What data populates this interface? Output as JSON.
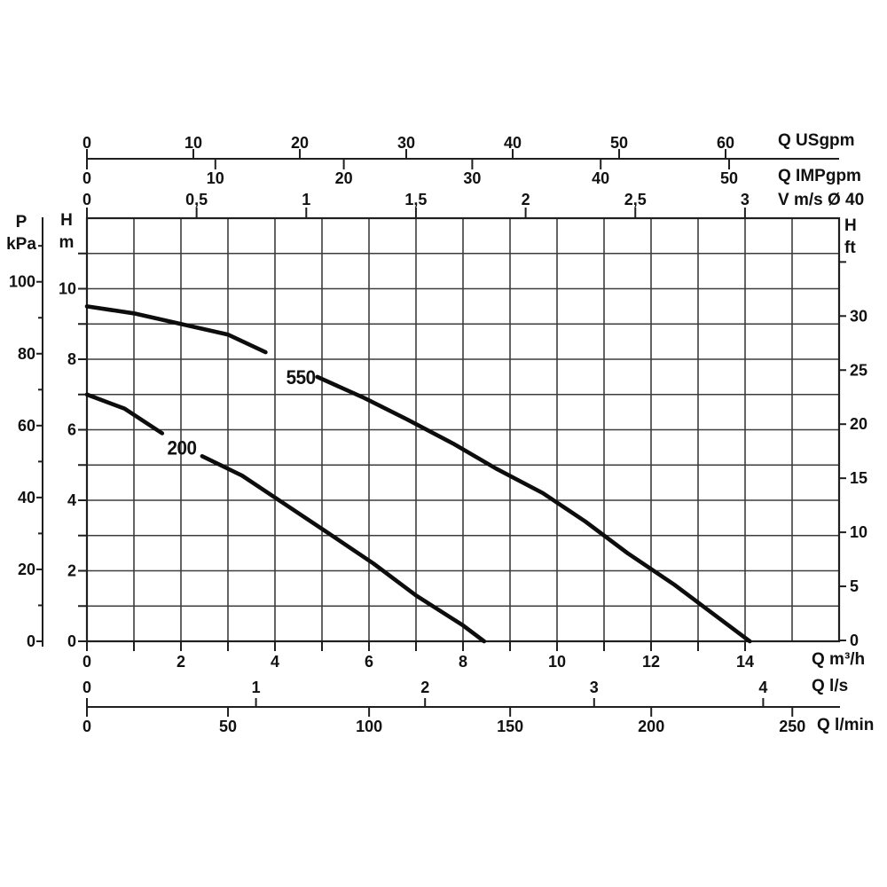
{
  "figure": {
    "bg_color": "#ffffff",
    "curve_color": "#0d0d0d",
    "grid_color": "#3d3d3d",
    "axis_color": "#1f1f1f",
    "text_color": "#111111"
  },
  "axes": {
    "top": [
      {
        "id": "usgpm",
        "title": "Q USgpm",
        "ticks": [
          {
            "v": 0,
            "l": "0"
          },
          {
            "v": 10,
            "l": "10"
          },
          {
            "v": 20,
            "l": "20"
          },
          {
            "v": 30,
            "l": "30"
          },
          {
            "v": 40,
            "l": "40"
          },
          {
            "v": 50,
            "l": "50"
          },
          {
            "v": 60,
            "l": "60"
          }
        ]
      },
      {
        "id": "impgpm",
        "title": "Q IMPgpm",
        "ticks": [
          {
            "v": 0,
            "l": "0"
          },
          {
            "v": 10,
            "l": "10"
          },
          {
            "v": 20,
            "l": "20"
          },
          {
            "v": 30,
            "l": "30"
          },
          {
            "v": 40,
            "l": "40"
          },
          {
            "v": 50,
            "l": "50"
          }
        ]
      },
      {
        "id": "vms",
        "title": "V m/s Ø 40",
        "ticks": [
          {
            "v": 0,
            "l": "0"
          },
          {
            "v": 0.5,
            "l": "0,5"
          },
          {
            "v": 1,
            "l": "1"
          },
          {
            "v": 1.5,
            "l": "1,5"
          },
          {
            "v": 2,
            "l": "2"
          },
          {
            "v": 2.5,
            "l": "2,5"
          },
          {
            "v": 3,
            "l": "3"
          }
        ]
      }
    ],
    "bottom": [
      {
        "id": "qm3h",
        "title": "Q m³/h",
        "ticks": [
          {
            "v": 0,
            "l": "0"
          },
          {
            "v": 1,
            "l": null
          },
          {
            "v": 2,
            "l": "2"
          },
          {
            "v": 3,
            "l": null
          },
          {
            "v": 4,
            "l": "4"
          },
          {
            "v": 5,
            "l": null
          },
          {
            "v": 6,
            "l": "6"
          },
          {
            "v": 7,
            "l": null
          },
          {
            "v": 8,
            "l": "8"
          },
          {
            "v": 9,
            "l": null
          },
          {
            "v": 10,
            "l": "10"
          },
          {
            "v": 11,
            "l": null
          },
          {
            "v": 12,
            "l": "12"
          },
          {
            "v": 13,
            "l": null
          },
          {
            "v": 14,
            "l": "14"
          }
        ]
      },
      {
        "id": "qls",
        "title": "Q l/s",
        "ticks": [
          {
            "v": 0,
            "l": "0"
          },
          {
            "v": 1,
            "l": "1"
          },
          {
            "v": 2,
            "l": "2"
          },
          {
            "v": 3,
            "l": "3"
          },
          {
            "v": 4,
            "l": "4"
          }
        ]
      },
      {
        "id": "qlmin",
        "title": "Q l/min",
        "ticks": [
          {
            "v": 0,
            "l": "0"
          },
          {
            "v": 50,
            "l": "50"
          },
          {
            "v": 100,
            "l": "100"
          },
          {
            "v": 150,
            "l": "150"
          },
          {
            "v": 200,
            "l": "200"
          },
          {
            "v": 250,
            "l": "250"
          }
        ]
      }
    ],
    "left": [
      {
        "id": "pkpa",
        "title_lines": [
          "P",
          "kPa"
        ],
        "ticks": [
          {
            "v": 0,
            "l": "0"
          },
          {
            "v": 10,
            "l": null
          },
          {
            "v": 20,
            "l": "20"
          },
          {
            "v": 30,
            "l": null
          },
          {
            "v": 40,
            "l": "40"
          },
          {
            "v": 50,
            "l": null
          },
          {
            "v": 60,
            "l": "60"
          },
          {
            "v": 70,
            "l": null
          },
          {
            "v": 80,
            "l": "80"
          },
          {
            "v": 90,
            "l": null
          },
          {
            "v": 100,
            "l": "100"
          },
          {
            "v": 110,
            "l": null
          }
        ]
      },
      {
        "id": "hm",
        "title_lines": [
          "H",
          "m"
        ],
        "ticks": [
          {
            "v": 0,
            "l": "0"
          },
          {
            "v": 1,
            "l": null
          },
          {
            "v": 2,
            "l": "2"
          },
          {
            "v": 3,
            "l": null
          },
          {
            "v": 4,
            "l": "4"
          },
          {
            "v": 5,
            "l": null
          },
          {
            "v": 6,
            "l": "6"
          },
          {
            "v": 7,
            "l": null
          },
          {
            "v": 8,
            "l": "8"
          },
          {
            "v": 9,
            "l": null
          },
          {
            "v": 10,
            "l": "10"
          },
          {
            "v": 11,
            "l": null
          }
        ]
      }
    ],
    "right": [
      {
        "id": "hft",
        "title_lines": [
          "H",
          "ft"
        ],
        "ticks": [
          {
            "v": 0,
            "l": "0"
          },
          {
            "v": 5,
            "l": "5"
          },
          {
            "v": 10,
            "l": "10"
          },
          {
            "v": 15,
            "l": "15"
          },
          {
            "v": 20,
            "l": "20"
          },
          {
            "v": 25,
            "l": "25"
          },
          {
            "v": 30,
            "l": "30"
          },
          {
            "v": 35,
            "l": null
          }
        ]
      }
    ]
  },
  "chart_data": {
    "type": "line",
    "x_axis": {
      "label": "Q m³/h",
      "range": [
        0,
        15.9
      ]
    },
    "y_axis": {
      "label": "H m",
      "range": [
        0,
        12
      ]
    },
    "grid": true,
    "series": [
      {
        "name": "550",
        "label_at": {
          "q": 4.55,
          "h": 7.5
        },
        "label_gap_q": [
          3.8,
          4.9
        ],
        "points": [
          [
            0,
            9.5
          ],
          [
            1,
            9.3
          ],
          [
            2,
            9.0
          ],
          [
            3,
            8.7
          ],
          [
            3.8,
            8.2
          ],
          [
            4.9,
            7.5
          ],
          [
            5.9,
            6.9
          ],
          [
            6.8,
            6.3
          ],
          [
            7.8,
            5.6
          ],
          [
            8.7,
            4.9
          ],
          [
            9.7,
            4.2
          ],
          [
            10.6,
            3.4
          ],
          [
            11.5,
            2.5
          ],
          [
            12.5,
            1.6
          ],
          [
            13.4,
            0.7
          ],
          [
            14.1,
            0
          ]
        ]
      },
      {
        "name": "200",
        "label_at": {
          "q": 2.02,
          "h": 5.5
        },
        "label_gap_q": [
          1.6,
          2.45
        ],
        "points": [
          [
            0,
            7.0
          ],
          [
            0.8,
            6.6
          ],
          [
            1.6,
            5.9
          ],
          [
            2.45,
            5.25
          ],
          [
            3.3,
            4.7
          ],
          [
            4.2,
            3.9
          ],
          [
            5.1,
            3.1
          ],
          [
            6.1,
            2.2
          ],
          [
            7.0,
            1.3
          ],
          [
            8.0,
            0.45
          ],
          [
            8.45,
            0
          ]
        ]
      }
    ],
    "alternate_x_scales": [
      {
        "unit": "Q USgpm",
        "range": [
          0,
          60
        ]
      },
      {
        "unit": "Q IMPgpm",
        "range": [
          0,
          50
        ]
      },
      {
        "unit": "V m/s Ø 40",
        "range": [
          0,
          3
        ]
      },
      {
        "unit": "Q l/s",
        "range": [
          0,
          4
        ]
      },
      {
        "unit": "Q l/min",
        "range": [
          0,
          250
        ]
      }
    ],
    "alternate_y_scales": [
      {
        "unit": "P kPa",
        "range": [
          0,
          110
        ]
      },
      {
        "unit": "H ft",
        "range": [
          0,
          35
        ]
      }
    ]
  }
}
